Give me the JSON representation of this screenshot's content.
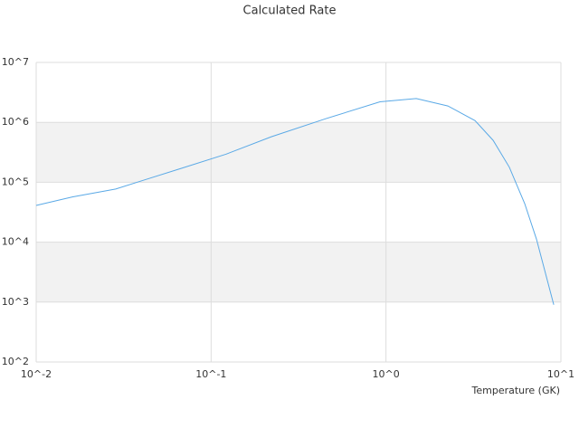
{
  "chart_data": {
    "type": "line",
    "title": "Calculated Rate",
    "x_label": "Temperature (GK)",
    "x_log": true,
    "y_log": true,
    "grid": true,
    "xlim": [
      0.01,
      10
    ],
    "ylim": [
      100,
      10000000
    ],
    "xticks": [
      {
        "value": 0.01,
        "label": "10^-2"
      },
      {
        "value": 0.1,
        "label": "10^-1"
      },
      {
        "value": 1,
        "label": "10^0"
      },
      {
        "value": 10,
        "label": "10^1"
      }
    ],
    "yticks": [
      {
        "value": 100,
        "label": "10^2"
      },
      {
        "value": 1000,
        "label": "10^3"
      },
      {
        "value": 10000,
        "label": "10^4"
      },
      {
        "value": 100000,
        "label": "10^5"
      },
      {
        "value": 1000000,
        "label": "10^6"
      },
      {
        "value": 10000000,
        "label": "10^7"
      }
    ],
    "x": [
      0.01,
      0.0161,
      0.0285,
      0.0418,
      0.0673,
      0.122,
      0.221,
      0.452,
      0.924,
      1.49,
      2.26,
      3.23,
      4.1,
      5.07,
      6.21,
      7.25,
      9.1
    ],
    "series": [
      {
        "color": "#5aa9e6",
        "values": [
          41000,
          57000,
          77000,
          110000,
          170000,
          295000,
          575000,
          1150000,
          2200000,
          2500000,
          1880000,
          1070000,
          500000,
          178000,
          44000,
          11200,
          900
        ]
      }
    ]
  }
}
